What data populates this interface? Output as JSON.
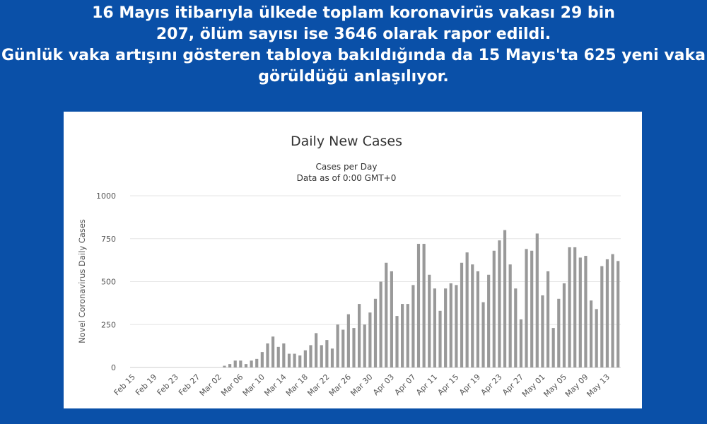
{
  "headline": {
    "line1": "16 Mayıs itibarıyla ülkede toplam koronavirüs vakası 29 bin",
    "line2": "207, ölüm sayısı ise 3646 olarak rapor edildi.",
    "line3": "Günlük vaka artışını gösteren tabloya bakıldığında da 15 Mayıs'ta 625 yeni vaka",
    "line4": "görüldüğü anlaşılıyor."
  },
  "colors": {
    "background": "#0a50a8",
    "headline_text": "#ffffff",
    "card": "#ffffff",
    "bar": "#999999",
    "grid": "#e6e6e6"
  },
  "chart_data": {
    "type": "bar",
    "title": "Daily New Cases",
    "subtitle": "Cases per Day",
    "subtitle2": "Data as of 0:00 GMT+0",
    "xlabel": "",
    "ylabel": "Novel Coronavirus Daily Cases",
    "ylim": [
      0,
      1000
    ],
    "yticks": [
      0,
      250,
      500,
      750,
      1000
    ],
    "grid": true,
    "legend": "none",
    "x_tick_labels": [
      "Feb 15",
      "Feb 19",
      "Feb 23",
      "Feb 27",
      "Mar 02",
      "Mar 06",
      "Mar 10",
      "Mar 14",
      "Mar 18",
      "Mar 22",
      "Mar 26",
      "Mar 30",
      "Apr 03",
      "Apr 07",
      "Apr 11",
      "Apr 15",
      "Apr 19",
      "Apr 23",
      "Apr 27",
      "May 01",
      "May 05",
      "May 09",
      "May 13"
    ],
    "x_tick_every": 4,
    "categories": [
      "Feb 15",
      "Feb 16",
      "Feb 17",
      "Feb 18",
      "Feb 19",
      "Feb 20",
      "Feb 21",
      "Feb 22",
      "Feb 23",
      "Feb 24",
      "Feb 25",
      "Feb 26",
      "Feb 27",
      "Feb 28",
      "Feb 29",
      "Mar 01",
      "Mar 02",
      "Mar 03",
      "Mar 04",
      "Mar 05",
      "Mar 06",
      "Mar 07",
      "Mar 08",
      "Mar 09",
      "Mar 10",
      "Mar 11",
      "Mar 12",
      "Mar 13",
      "Mar 14",
      "Mar 15",
      "Mar 16",
      "Mar 17",
      "Mar 18",
      "Mar 19",
      "Mar 20",
      "Mar 21",
      "Mar 22",
      "Mar 23",
      "Mar 24",
      "Mar 25",
      "Mar 26",
      "Mar 27",
      "Mar 28",
      "Mar 29",
      "Mar 30",
      "Mar 31",
      "Apr 01",
      "Apr 02",
      "Apr 03",
      "Apr 04",
      "Apr 05",
      "Apr 06",
      "Apr 07",
      "Apr 08",
      "Apr 09",
      "Apr 10",
      "Apr 11",
      "Apr 12",
      "Apr 13",
      "Apr 14",
      "Apr 15",
      "Apr 16",
      "Apr 17",
      "Apr 18",
      "Apr 19",
      "Apr 20",
      "Apr 21",
      "Apr 22",
      "Apr 23",
      "Apr 24",
      "Apr 25",
      "Apr 26",
      "Apr 27",
      "Apr 28",
      "Apr 29",
      "Apr 30",
      "May 01",
      "May 02",
      "May 03",
      "May 04",
      "May 05",
      "May 06",
      "May 07",
      "May 08",
      "May 09",
      "May 10",
      "May 11",
      "May 12",
      "May 13",
      "May 14",
      "May 15"
    ],
    "values": [
      0,
      0,
      0,
      0,
      0,
      0,
      0,
      0,
      0,
      0,
      0,
      0,
      0,
      0,
      0,
      0,
      0,
      10,
      20,
      40,
      40,
      20,
      40,
      50,
      90,
      140,
      180,
      120,
      140,
      80,
      80,
      70,
      100,
      130,
      200,
      130,
      160,
      110,
      250,
      220,
      310,
      230,
      370,
      250,
      320,
      400,
      500,
      610,
      560,
      300,
      370,
      370,
      480,
      720,
      720,
      540,
      460,
      330,
      460,
      490,
      480,
      610,
      670,
      600,
      560,
      380,
      540,
      680,
      740,
      800,
      600,
      460,
      280,
      690,
      680,
      780,
      420,
      560,
      230,
      400,
      490,
      700,
      700,
      640,
      650,
      390,
      340,
      590,
      630,
      660,
      620
    ]
  }
}
